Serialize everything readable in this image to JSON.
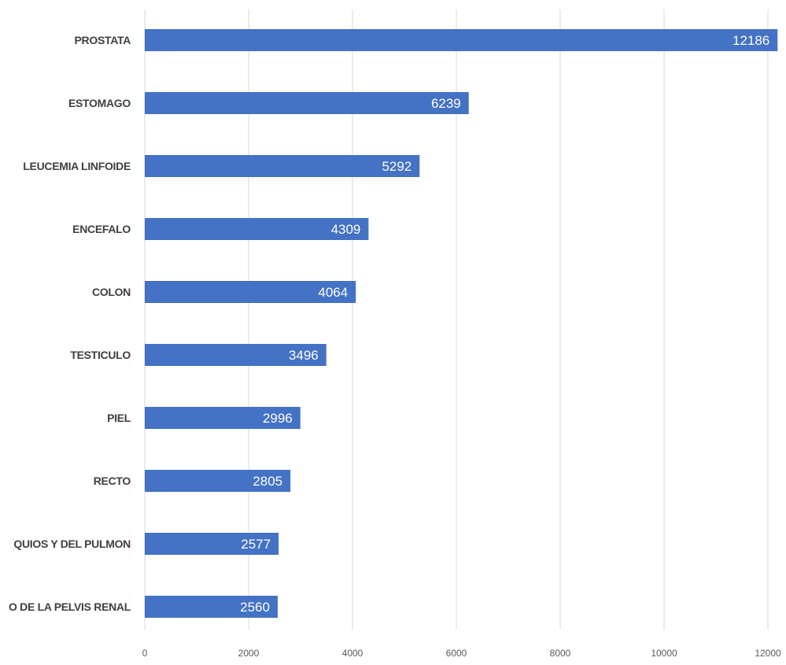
{
  "chart_data": {
    "type": "bar",
    "orientation": "horizontal",
    "categories": [
      "PROSTATA",
      "ESTOMAGO",
      "LEUCEMIA LINFOIDE",
      "ENCEFALO",
      "COLON",
      "TESTICULO",
      "PIEL",
      "RECTO",
      "QUIOS Y DEL PULMON",
      "O DE LA PELVIS RENAL"
    ],
    "values": [
      12186,
      6239,
      5292,
      4309,
      4064,
      3496,
      2996,
      2805,
      2577,
      2560
    ],
    "data_labels": [
      "12186",
      "6239",
      "5292",
      "4309",
      "4064",
      "3496",
      "2996",
      "2805",
      "2577",
      "2560"
    ],
    "xlim": [
      0,
      12000
    ],
    "x_ticks": [
      0,
      2000,
      4000,
      6000,
      8000,
      10000,
      12000
    ],
    "x_tick_labels": [
      "0",
      "2000",
      "4000",
      "6000",
      "8000",
      "10000",
      "12000"
    ],
    "grid": "vertical",
    "legend": "none",
    "colors": {
      "bar": "#4472c4",
      "grid": "#d9d9d9",
      "label": "#404040",
      "data_label": "#ffffff"
    }
  }
}
